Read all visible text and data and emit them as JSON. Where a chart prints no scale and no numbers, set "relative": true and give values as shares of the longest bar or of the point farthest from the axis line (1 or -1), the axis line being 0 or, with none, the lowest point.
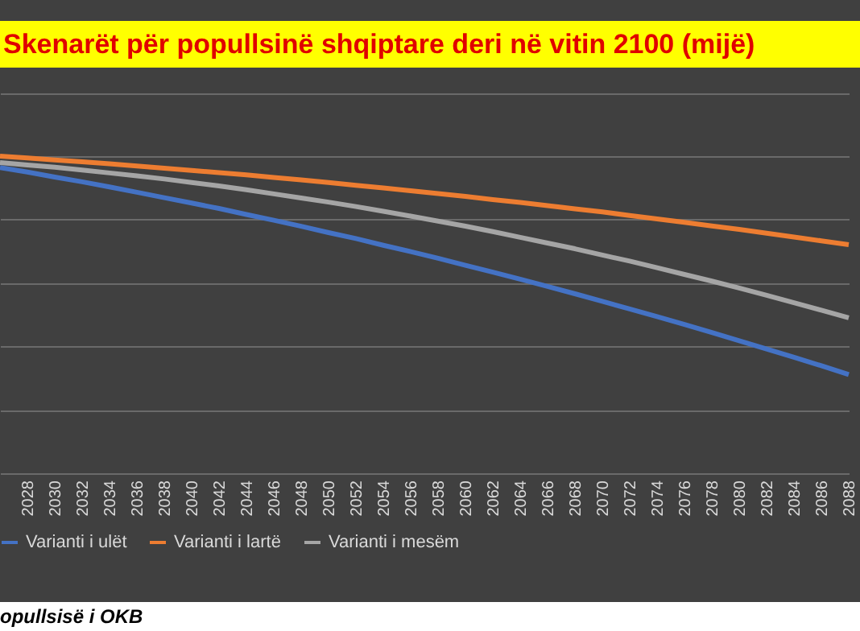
{
  "chart_data": {
    "type": "line",
    "title": "Skenarët për popullsinë shqiptare deri në vitin 2100 (mijë)",
    "categories": [
      null,
      "2028",
      "2030",
      "2032",
      "2034",
      "2036",
      "2038",
      "2040",
      "2042",
      "2044",
      "2046",
      "2048",
      "2050",
      "2052",
      "2054",
      "2056",
      "2058",
      "2060",
      "2062",
      "2064",
      "2066",
      "2068",
      "2070",
      "2072",
      "2074",
      "2076",
      "2078",
      "2080",
      "2082",
      "2084",
      "2086",
      "2088"
    ],
    "relative": true,
    "grid": "y",
    "legend": "bottom",
    "tick_labels": "x",
    "line_style": "solid",
    "marker": "none",
    "series": [
      {
        "name": "Varianti i ulët",
        "color": "#4472c4",
        "values": [
          0.964,
          0.95,
          0.934,
          0.919,
          0.903,
          0.886,
          0.869,
          0.852,
          0.835,
          0.816,
          0.798,
          0.779,
          0.759,
          0.74,
          0.719,
          0.699,
          0.678,
          0.656,
          0.634,
          0.612,
          0.589,
          0.566,
          0.542,
          0.518,
          0.494,
          0.469,
          0.444,
          0.418,
          0.392,
          0.366,
          0.339,
          0.311
        ]
      },
      {
        "name": "Varianti i lartë",
        "color": "#ed7d31",
        "values": [
          1.0,
          0.994,
          0.988,
          0.982,
          0.976,
          0.969,
          0.962,
          0.955,
          0.948,
          0.941,
          0.933,
          0.925,
          0.917,
          0.908,
          0.9,
          0.891,
          0.882,
          0.873,
          0.863,
          0.854,
          0.844,
          0.834,
          0.824,
          0.813,
          0.802,
          0.791,
          0.78,
          0.769,
          0.757,
          0.745,
          0.733,
          0.721
        ]
      },
      {
        "name": "Varianti i mesëm",
        "color": "#a5a5a5",
        "values": [
          0.98,
          0.972,
          0.965,
          0.956,
          0.947,
          0.938,
          0.928,
          0.917,
          0.906,
          0.894,
          0.881,
          0.868,
          0.855,
          0.841,
          0.826,
          0.811,
          0.795,
          0.779,
          0.762,
          0.744,
          0.726,
          0.708,
          0.688,
          0.669,
          0.648,
          0.627,
          0.606,
          0.584,
          0.561,
          0.538,
          0.514,
          0.49
        ]
      }
    ],
    "annotations": [
      "opullsisë i OKB"
    ]
  }
}
